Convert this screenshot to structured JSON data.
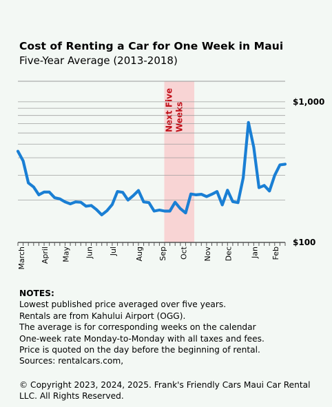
{
  "title": "Cost of Renting a Car for One Week in Maui",
  "subtitle": "Five-Year Average (2013-2018)",
  "highlight_label": [
    "Next Five",
    "Weeks"
  ],
  "colors": {
    "background": "#f3f8f4",
    "line": "#1a7fd4",
    "highlight": "#f8d4d4",
    "highlight_text": "#c0111a",
    "grid": "#9a9a9a"
  },
  "chart_data": {
    "type": "line",
    "title": "Cost of Renting a Car for One Week in Maui",
    "subtitle": "Five-Year Average (2013-2018)",
    "y_scale": "log",
    "ylim": [
      100,
      1400
    ],
    "y_ticks": [
      100,
      1000
    ],
    "y_tick_labels": [
      "$100",
      "$1,000"
    ],
    "gridlines": [
      200,
      300,
      400,
      500,
      600,
      700,
      800,
      900,
      1000
    ],
    "x_tick_labels": [
      "March",
      "April",
      "May",
      "Jun",
      "Jul",
      "Aug",
      "Sep",
      "Oct",
      "Nov",
      "Dec",
      "Jan",
      "Feb"
    ],
    "x_tick_weeks": [
      0.5,
      5,
      9,
      13.5,
      18,
      23,
      27.5,
      31.5,
      36,
      40,
      45,
      49
    ],
    "highlight": {
      "label": "Next Five Weeks",
      "from_week": 28,
      "to_week": 33
    },
    "series": [
      {
        "values": [
          445,
          380,
          265,
          248,
          218,
          228,
          228,
          208,
          204,
          194,
          188,
          194,
          193,
          181,
          183,
          171,
          157,
          168,
          186,
          230,
          227,
          200,
          215,
          234,
          194,
          192,
          167,
          170,
          167,
          167,
          193,
          174,
          162,
          221,
          218,
          220,
          212,
          220,
          230,
          185,
          235,
          195,
          192,
          288,
          713,
          475,
          245,
          254,
          232,
          300,
          356,
          360
        ]
      }
    ]
  },
  "notes": {
    "header": "NOTES:",
    "lines": [
      "Lowest published price averaged over five years.",
      "Rentals are from Kahului Airport (OGG).",
      "The average is for corresponding weeks on the calendar",
      "One-week rate Monday-to-Monday with all taxes and fees.",
      "Price is quoted on the day before the beginning of rental.",
      "Sources:  rentalcars.com,"
    ]
  },
  "copyright": "© Copyright 2023, 2024, 2025. Frank's Friendly Cars Maui Car Rental LLC. All Rights Reserved."
}
